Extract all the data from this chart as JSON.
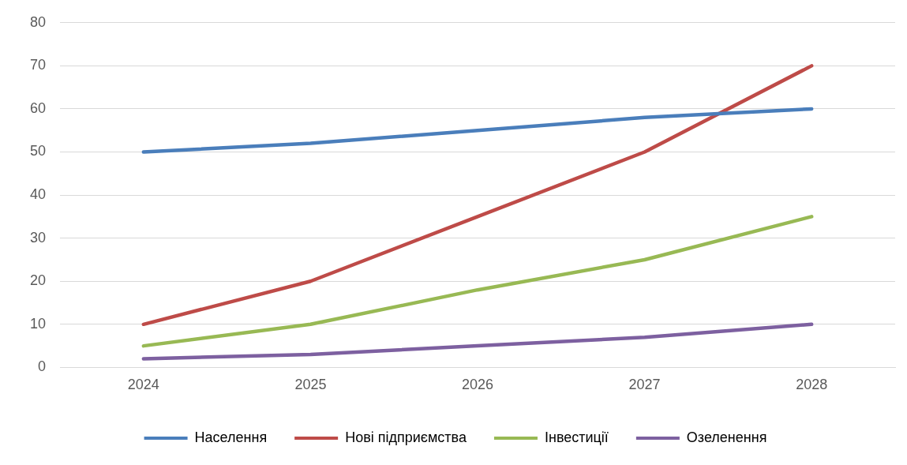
{
  "chart_data": {
    "type": "line",
    "categories": [
      "2024",
      "2025",
      "2026",
      "2027",
      "2028"
    ],
    "series": [
      {
        "name": "Населення",
        "color": "#4a7ebb",
        "values": [
          50,
          52,
          55,
          58,
          60
        ]
      },
      {
        "name": "Нові підприємства",
        "color": "#be4b48",
        "values": [
          10,
          20,
          35,
          50,
          70
        ]
      },
      {
        "name": "Інвестиції",
        "color": "#98b954",
        "values": [
          5,
          10,
          18,
          25,
          35
        ]
      },
      {
        "name": "Озеленення",
        "color": "#7d60a0",
        "values": [
          2,
          3,
          5,
          7,
          10
        ]
      }
    ],
    "ylim": [
      0,
      80
    ],
    "yticks": [
      0,
      10,
      20,
      30,
      40,
      50,
      60,
      70,
      80
    ],
    "grid": "y",
    "legend": "bottom",
    "marker": "none",
    "line_style": "solid"
  }
}
